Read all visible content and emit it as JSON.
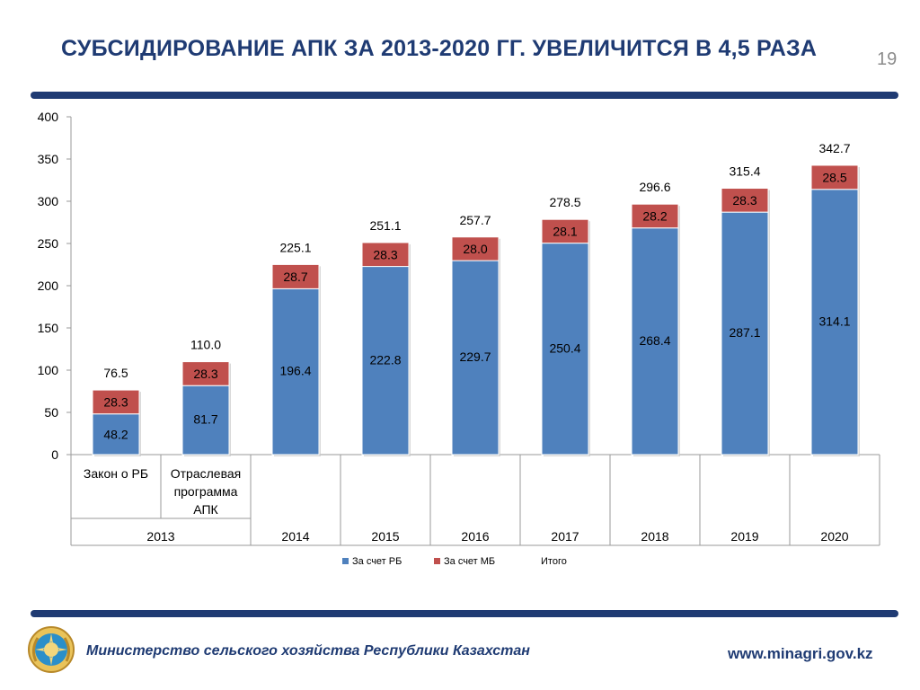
{
  "slide": {
    "title": "СУБСИДИРОВАНИЕ АПК ЗА 2013-2020 ГГ. УВЕЛИЧИТСЯ В 4,5 РАЗА",
    "page_number": "19"
  },
  "footer": {
    "ministry": "Министерство сельского хозяйства Республики Казахстан",
    "website": "www.minagri.gov.kz",
    "emblem_icon": "kazakhstan-emblem-icon"
  },
  "colors": {
    "title": "#1f3b73",
    "series_rb": "#4f81bd",
    "series_mb": "#c0504d"
  },
  "chart_data": {
    "type": "bar",
    "stacked": true,
    "categories": [
      {
        "label": "Закон о РБ",
        "group": "2013"
      },
      {
        "label": "Отраслевая программа АПК",
        "group": "2013"
      },
      {
        "label": "",
        "group": "2014"
      },
      {
        "label": "",
        "group": "2015"
      },
      {
        "label": "",
        "group": "2016"
      },
      {
        "label": "",
        "group": "2017"
      },
      {
        "label": "",
        "group": "2018"
      },
      {
        "label": "",
        "group": "2019"
      },
      {
        "label": "",
        "group": "2020"
      }
    ],
    "groups": [
      "2013",
      "2014",
      "2015",
      "2016",
      "2017",
      "2018",
      "2019",
      "2020"
    ],
    "series": [
      {
        "name": "За счет РБ",
        "color": "#4f81bd",
        "values": [
          48.2,
          81.7,
          196.4,
          222.8,
          229.7,
          250.4,
          268.4,
          287.1,
          314.1
        ]
      },
      {
        "name": "За счет МБ",
        "color": "#c0504d",
        "values": [
          28.3,
          28.3,
          28.7,
          28.3,
          28.0,
          28.1,
          28.2,
          28.3,
          28.5
        ]
      }
    ],
    "totals_name": "Итого",
    "totals": [
      76.5,
      110.0,
      225.1,
      251.1,
      257.7,
      278.5,
      296.6,
      315.4,
      342.7
    ],
    "ylim": [
      0,
      400
    ],
    "yticks": [
      0,
      50,
      100,
      150,
      200,
      250,
      300,
      350,
      400
    ],
    "legend": [
      "За счет РБ",
      "За счет МБ",
      "Итого"
    ],
    "legend_position": "bottom",
    "grid": false
  }
}
